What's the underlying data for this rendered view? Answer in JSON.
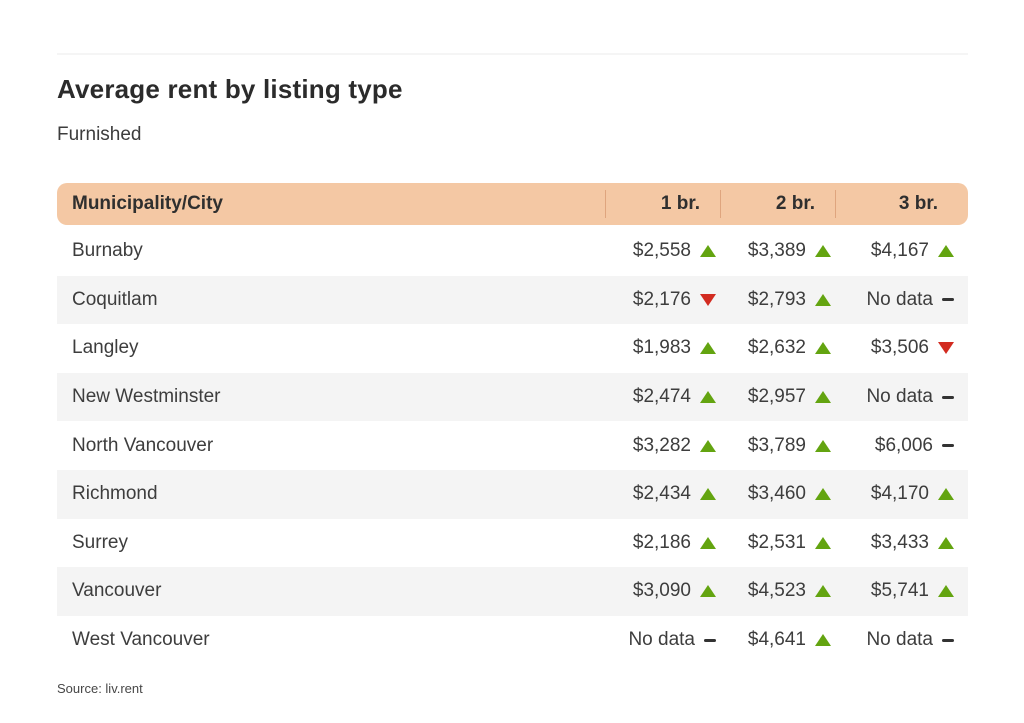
{
  "page": {
    "title": "Average rent by listing type",
    "subtitle": "Furnished",
    "source": "Source: liv.rent"
  },
  "colors": {
    "header_bg": "#f4c8a4",
    "header_divider": "#dfa57e",
    "row_alt_bg": "#f4f4f4",
    "trend_up_green": "#63a410",
    "trend_down_red": "#d22b20",
    "text_dark": "#3d3d3d"
  },
  "chart_data": {
    "type": "table",
    "title": "Average rent by listing type",
    "subtitle": "Furnished",
    "columns": [
      "Municipality/City",
      "1 br.",
      "2 br.",
      "3 br."
    ],
    "trend_legend": {
      "up": "rent increased (green up triangle)",
      "down": "rent decreased (red down triangle)",
      "none": "no change / no data (dash)"
    },
    "rows": [
      {
        "city": "Burnaby",
        "cells": [
          {
            "value": "$2,558",
            "trend": "up"
          },
          {
            "value": "$3,389",
            "trend": "up"
          },
          {
            "value": "$4,167",
            "trend": "up"
          }
        ]
      },
      {
        "city": "Coquitlam",
        "cells": [
          {
            "value": "$2,176",
            "trend": "down"
          },
          {
            "value": "$2,793",
            "trend": "up"
          },
          {
            "value": "No data",
            "trend": "none"
          }
        ]
      },
      {
        "city": "Langley",
        "cells": [
          {
            "value": "$1,983",
            "trend": "up"
          },
          {
            "value": "$2,632",
            "trend": "up"
          },
          {
            "value": "$3,506",
            "trend": "down"
          }
        ]
      },
      {
        "city": "New Westminster",
        "cells": [
          {
            "value": "$2,474",
            "trend": "up"
          },
          {
            "value": "$2,957",
            "trend": "up"
          },
          {
            "value": "No data",
            "trend": "none"
          }
        ]
      },
      {
        "city": "North Vancouver",
        "cells": [
          {
            "value": "$3,282",
            "trend": "up"
          },
          {
            "value": "$3,789",
            "trend": "up"
          },
          {
            "value": "$6,006",
            "trend": "none"
          }
        ]
      },
      {
        "city": "Richmond",
        "cells": [
          {
            "value": "$2,434",
            "trend": "up"
          },
          {
            "value": "$3,460",
            "trend": "up"
          },
          {
            "value": "$4,170",
            "trend": "up"
          }
        ]
      },
      {
        "city": "Surrey",
        "cells": [
          {
            "value": "$2,186",
            "trend": "up"
          },
          {
            "value": "$2,531",
            "trend": "up"
          },
          {
            "value": "$3,433",
            "trend": "up"
          }
        ]
      },
      {
        "city": "Vancouver",
        "cells": [
          {
            "value": "$3,090",
            "trend": "up"
          },
          {
            "value": "$4,523",
            "trend": "up"
          },
          {
            "value": "$5,741",
            "trend": "up"
          }
        ]
      },
      {
        "city": "West Vancouver",
        "cells": [
          {
            "value": "No data",
            "trend": "none"
          },
          {
            "value": "$4,641",
            "trend": "up"
          },
          {
            "value": "No data",
            "trend": "none"
          }
        ]
      }
    ]
  }
}
